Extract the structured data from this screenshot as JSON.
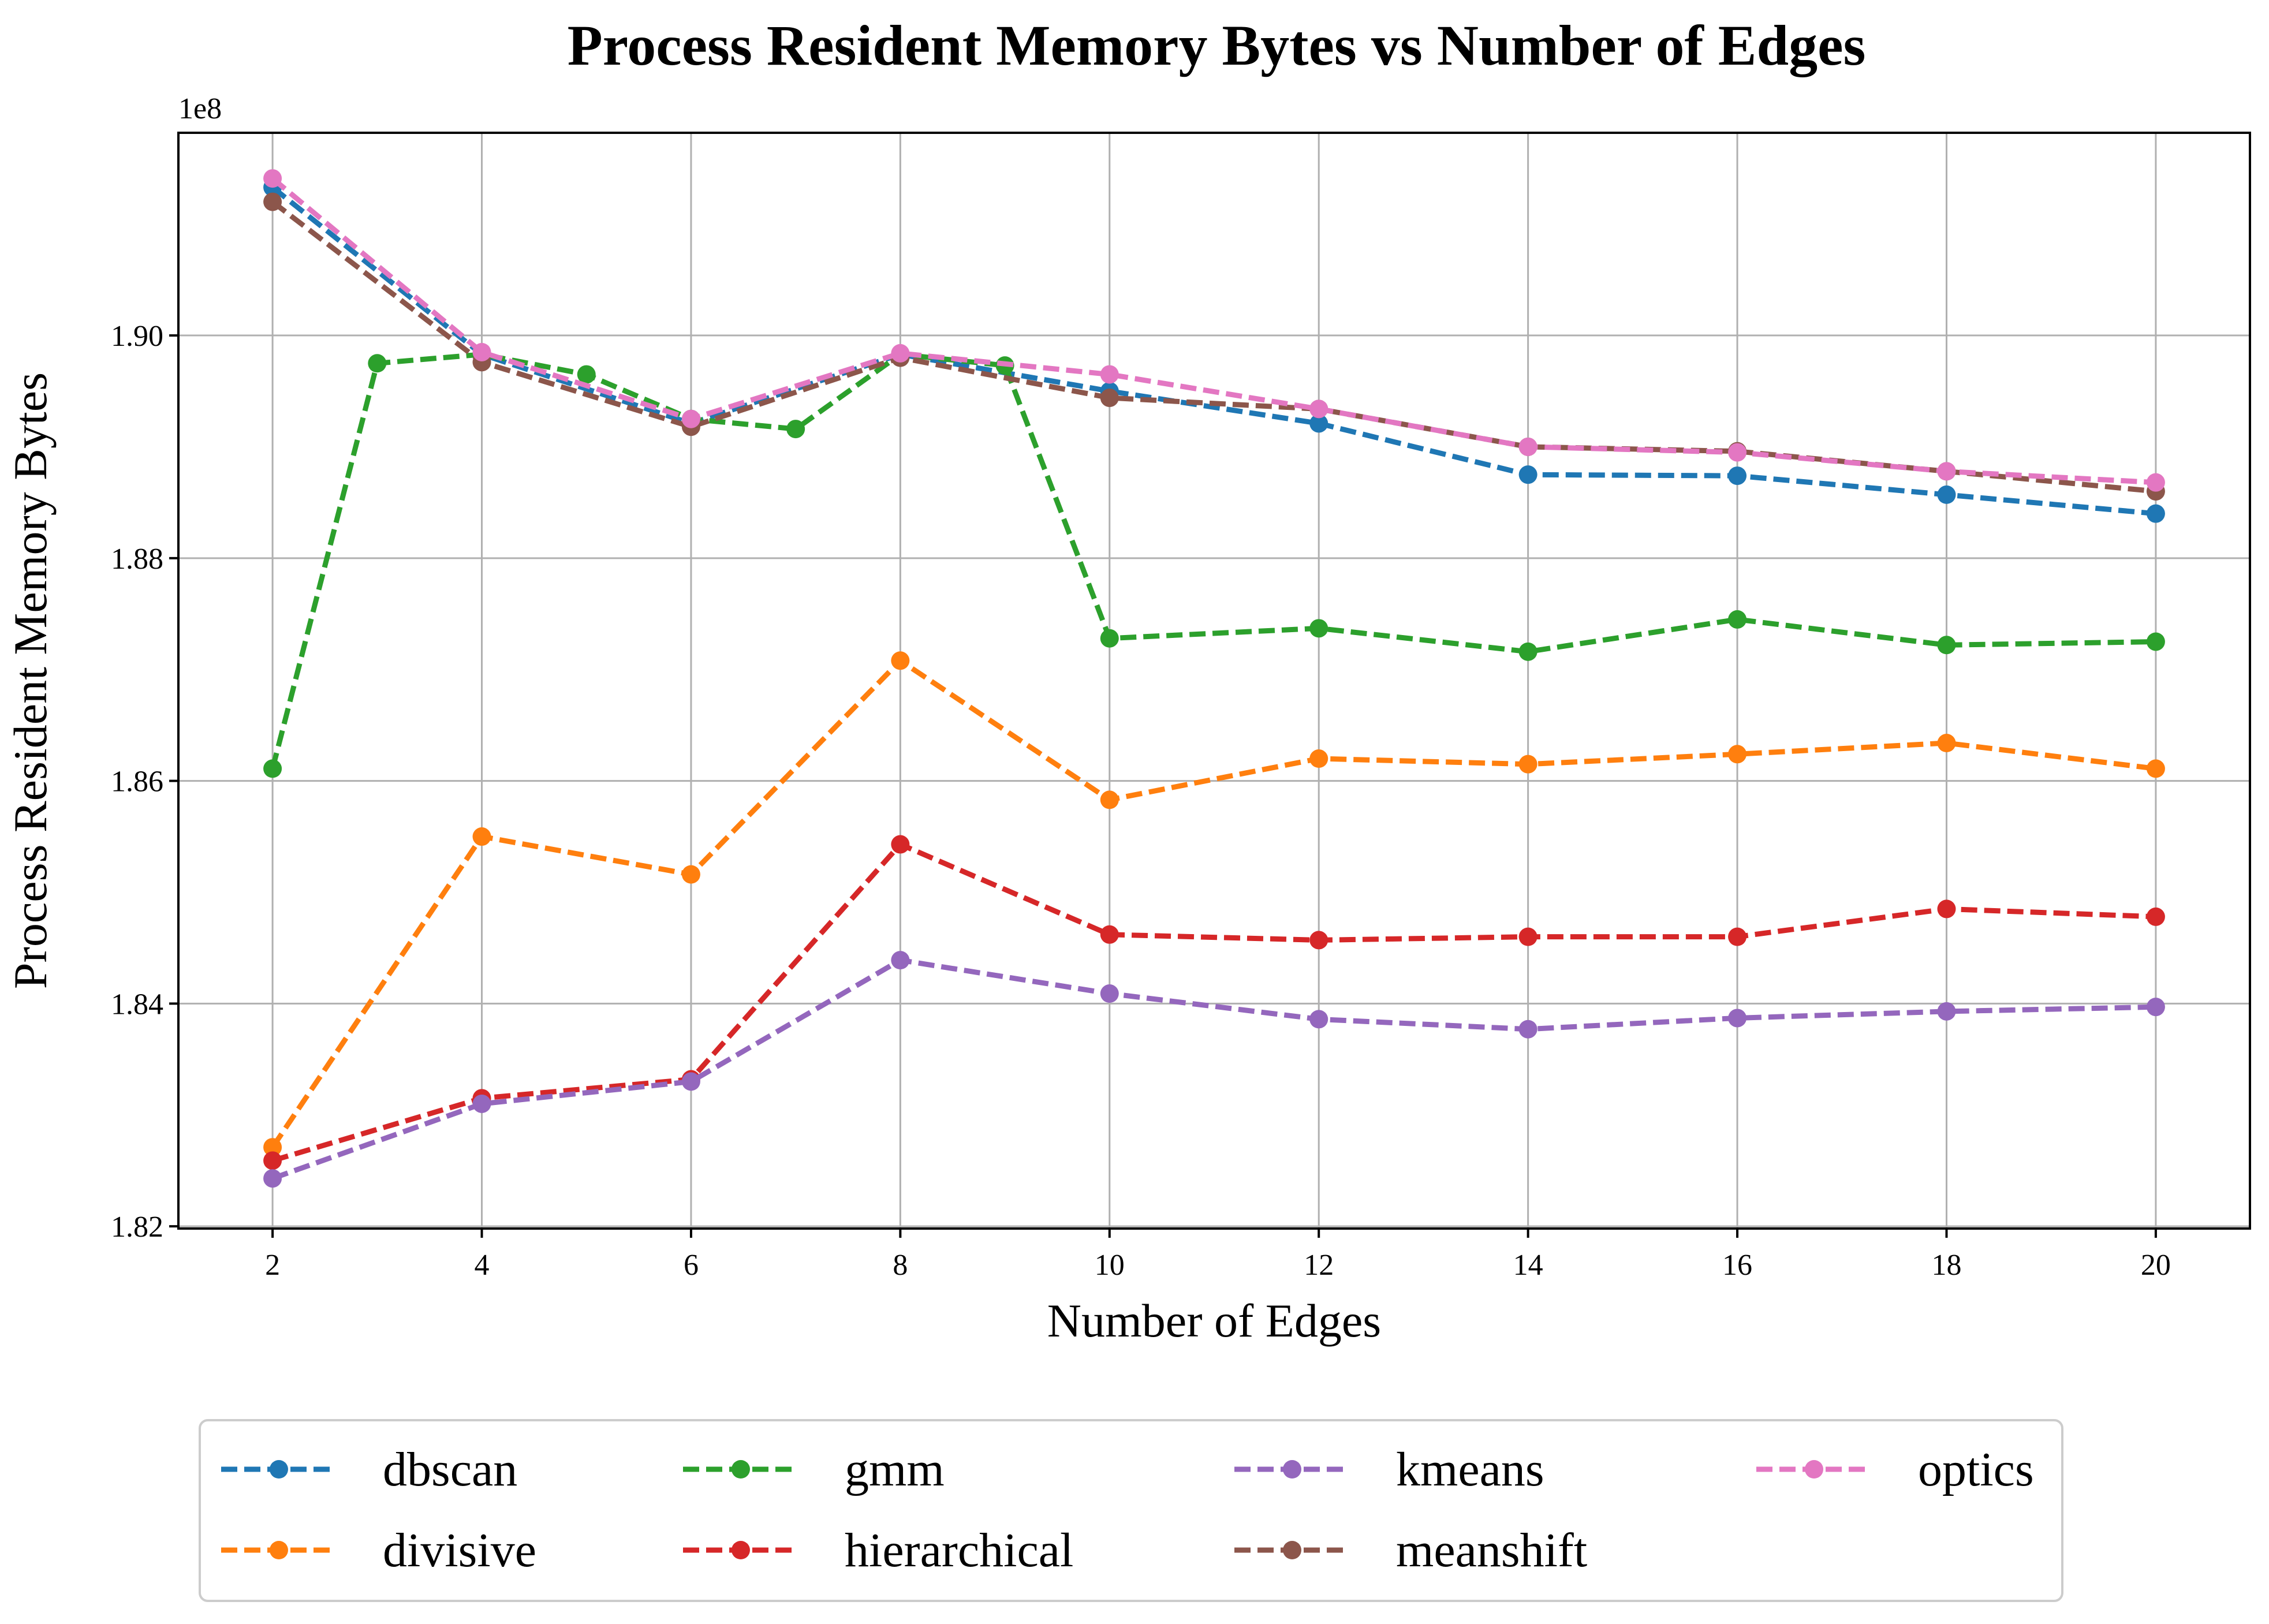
{
  "chart_data": {
    "type": "line",
    "title": "Process Resident Memory Bytes vs Number of Edges",
    "xlabel": "Number of Edges",
    "ylabel": "Process Resident Memory Bytes",
    "y_offset_label": "1e8",
    "xlim": [
      1.1,
      20.9
    ],
    "ylim": [
      1.8198,
      1.9182
    ],
    "x_ticks": [
      2,
      4,
      6,
      8,
      10,
      12,
      14,
      16,
      18,
      20
    ],
    "x_tick_labels": [
      "2",
      "4",
      "6",
      "8",
      "10",
      "12",
      "14",
      "16",
      "18",
      "20"
    ],
    "y_ticks": [
      1.82,
      1.84,
      1.86,
      1.88,
      1.9
    ],
    "y_tick_labels": [
      "1.82",
      "1.84",
      "1.86",
      "1.88",
      "1.90"
    ],
    "grid": true,
    "legend_position": "below",
    "series": [
      {
        "name": "dbscan",
        "color": "#1f77b4",
        "x": [
          2,
          4,
          6,
          8,
          10,
          12,
          14,
          16,
          18,
          20
        ],
        "y": [
          1.9133,
          1.8983,
          1.8921,
          1.8983,
          1.895,
          1.8921,
          1.8875,
          1.8874,
          1.8857,
          1.884
        ]
      },
      {
        "name": "divisive",
        "color": "#ff7f0e",
        "x": [
          2,
          4,
          6,
          8,
          10,
          12,
          14,
          16,
          18,
          20
        ],
        "y": [
          1.8271,
          1.855,
          1.8516,
          1.8708,
          1.8583,
          1.862,
          1.8615,
          1.8624,
          1.8634,
          1.8611
        ]
      },
      {
        "name": "gmm",
        "color": "#2ca02c",
        "x": [
          2,
          3,
          4,
          5,
          6,
          7,
          8,
          9,
          10,
          12,
          14,
          16,
          18,
          20
        ],
        "y": [
          1.8611,
          1.8975,
          1.8983,
          1.8965,
          1.8925,
          1.8916,
          1.8983,
          1.8973,
          1.8728,
          1.8737,
          1.8716,
          1.8745,
          1.8722,
          1.8725
        ]
      },
      {
        "name": "hierarchical",
        "color": "#d62728",
        "x": [
          2,
          4,
          6,
          8,
          10,
          12,
          14,
          16,
          18,
          20
        ],
        "y": [
          1.8259,
          1.8315,
          1.8332,
          1.8543,
          1.8462,
          1.8457,
          1.846,
          1.846,
          1.8485,
          1.8478
        ]
      },
      {
        "name": "kmeans",
        "color": "#9467bd",
        "x": [
          2,
          4,
          6,
          8,
          10,
          12,
          14,
          16,
          18,
          20
        ],
        "y": [
          1.8243,
          1.831,
          1.833,
          1.8439,
          1.8409,
          1.8386,
          1.8377,
          1.8387,
          1.8393,
          1.8397
        ]
      },
      {
        "name": "meanshift",
        "color": "#8c564b",
        "x": [
          2,
          4,
          6,
          8,
          10,
          12,
          14,
          16,
          18,
          20
        ],
        "y": [
          1.912,
          1.8976,
          1.8918,
          1.898,
          1.8944,
          1.8934,
          1.89,
          1.8896,
          1.8878,
          1.886
        ]
      },
      {
        "name": "optics",
        "color": "#e377c2",
        "x": [
          2,
          4,
          6,
          8,
          10,
          12,
          14,
          16,
          18,
          20
        ],
        "y": [
          1.9141,
          1.8985,
          1.8925,
          1.8984,
          1.8965,
          1.8934,
          1.89,
          1.8895,
          1.8878,
          1.8868
        ]
      }
    ]
  }
}
